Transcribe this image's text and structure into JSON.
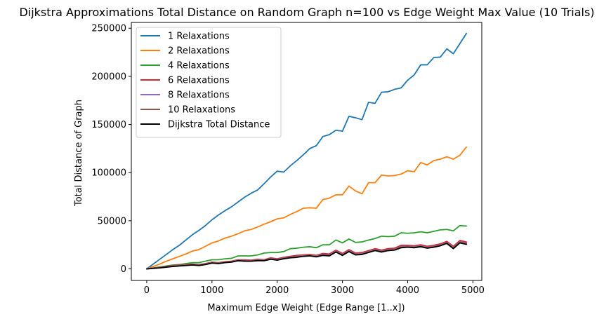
{
  "chart_data": {
    "type": "line",
    "title": "Dijkstra Approximations Total Distance on Random Graph n=100 vs Edge Weight Max Value (10 Trials)",
    "xlabel": "Maximum Edge Weight (Edge Range [1..x])",
    "ylabel": "Total Distance of Graph",
    "xlim": [
      -236,
      5136
    ],
    "ylim": [
      -12000,
      256000
    ],
    "xticks": [
      0,
      1000,
      2000,
      3000,
      4000,
      5000
    ],
    "yticks": [
      0,
      50000,
      100000,
      150000,
      200000,
      250000
    ],
    "legend_position": "upper-left",
    "grid": false,
    "x": [
      0,
      100,
      200,
      300,
      400,
      500,
      600,
      700,
      800,
      900,
      1000,
      1100,
      1200,
      1300,
      1400,
      1500,
      1600,
      1700,
      1800,
      1900,
      2000,
      2100,
      2200,
      2300,
      2400,
      2500,
      2600,
      2700,
      2800,
      2900,
      3000,
      3100,
      3200,
      3300,
      3400,
      3500,
      3600,
      3700,
      3800,
      3900,
      4000,
      4100,
      4200,
      4300,
      4400,
      4500,
      4600,
      4700,
      4800,
      4900
    ],
    "series": [
      {
        "name": "1 Relaxations",
        "color": "#1f77b4",
        "values": [
          0,
          5000,
          10000,
          15000,
          20000,
          24500,
          30000,
          35500,
          40000,
          45000,
          51000,
          56000,
          60500,
          64500,
          69500,
          74500,
          78500,
          82000,
          88500,
          95500,
          101500,
          100500,
          107000,
          112500,
          118500,
          125000,
          128000,
          137500,
          139500,
          144000,
          143000,
          158500,
          157000,
          155000,
          173000,
          172000,
          183500,
          184000,
          186500,
          188000,
          196000,
          201500,
          212000,
          212000,
          219500,
          220000,
          228500,
          223500,
          234000,
          244500
        ]
      },
      {
        "name": "2 Relaxations",
        "color": "#ff7f0e",
        "values": [
          0,
          2500,
          5000,
          8000,
          10500,
          13000,
          15500,
          18500,
          20000,
          23500,
          27000,
          29000,
          32000,
          34000,
          36500,
          39500,
          41000,
          43500,
          46500,
          49000,
          52000,
          53000,
          56500,
          59500,
          63000,
          63500,
          63000,
          72000,
          73500,
          77000,
          77000,
          86000,
          81000,
          78000,
          89500,
          89500,
          97500,
          96500,
          97000,
          98500,
          102000,
          101000,
          110500,
          108000,
          112500,
          114000,
          116500,
          114000,
          118000,
          126500
        ]
      },
      {
        "name": "4 Relaxations",
        "color": "#2ca02c",
        "values": [
          0,
          1000,
          2000,
          3000,
          4000,
          4500,
          5500,
          6500,
          6500,
          8000,
          9500,
          9500,
          10500,
          11000,
          13500,
          13500,
          13500,
          14500,
          16500,
          17000,
          17000,
          18000,
          21000,
          21500,
          22500,
          23000,
          22000,
          25000,
          25000,
          30000,
          27000,
          31000,
          27500,
          28000,
          30000,
          31500,
          34000,
          33500,
          34000,
          37500,
          37000,
          37500,
          38500,
          37500,
          39000,
          40500,
          41000,
          39500,
          45000,
          44500
        ]
      },
      {
        "name": "6 Relaxations",
        "color": "#d62728",
        "values": [
          0,
          1000,
          1500,
          2500,
          3500,
          4000,
          4500,
          5000,
          4500,
          5500,
          7000,
          6500,
          7500,
          8000,
          9500,
          9500,
          9000,
          10000,
          9500,
          11500,
          10500,
          12000,
          13000,
          14000,
          14500,
          15000,
          14000,
          16000,
          15500,
          19500,
          16000,
          20000,
          16500,
          17000,
          19000,
          21000,
          19500,
          21000,
          21500,
          24500,
          24500,
          24000,
          25000,
          23500,
          24500,
          26000,
          28500,
          23500,
          29500,
          28000
        ]
      },
      {
        "name": "8 Relaxations",
        "color": "#9467bd",
        "values": [
          0,
          800,
          1300,
          2200,
          3000,
          3600,
          4100,
          4600,
          4200,
          5000,
          6400,
          6000,
          7000,
          7500,
          9000,
          8800,
          8500,
          9300,
          9000,
          10800,
          9700,
          11300,
          12300,
          13000,
          13700,
          14200,
          13200,
          15000,
          14400,
          18500,
          15000,
          19000,
          15400,
          16000,
          18000,
          20000,
          18500,
          19900,
          20300,
          23300,
          23400,
          23000,
          23900,
          22600,
          23400,
          25000,
          27400,
          22300,
          28300,
          26800
        ]
      },
      {
        "name": "10 Relaxations",
        "color": "#8c564b",
        "values": [
          0,
          700,
          1200,
          2000,
          2800,
          3400,
          3900,
          4400,
          4000,
          4800,
          6200,
          5800,
          6700,
          7200,
          8700,
          8400,
          8200,
          9000,
          8700,
          10400,
          9300,
          10900,
          11900,
          12600,
          13300,
          13800,
          12800,
          14500,
          13900,
          18000,
          14500,
          18500,
          14900,
          15500,
          17400,
          19400,
          18000,
          19400,
          19800,
          22700,
          22900,
          22500,
          23400,
          22100,
          22900,
          24500,
          26900,
          21800,
          27700,
          26200
        ]
      },
      {
        "name": "Dijkstra Total Distance",
        "color": "#000000",
        "values": [
          0,
          500,
          1000,
          1800,
          2500,
          3000,
          3500,
          4000,
          3500,
          4500,
          6000,
          5500,
          6500,
          7000,
          8500,
          8000,
          8000,
          8500,
          8500,
          10000,
          9000,
          10500,
          11500,
          12000,
          13000,
          13500,
          12500,
          14000,
          13500,
          17500,
          14000,
          18000,
          14500,
          15000,
          17000,
          19000,
          17500,
          19000,
          19500,
          22000,
          22500,
          22000,
          23000,
          21500,
          22500,
          24000,
          26500,
          21000,
          27000,
          25500
        ]
      }
    ]
  }
}
